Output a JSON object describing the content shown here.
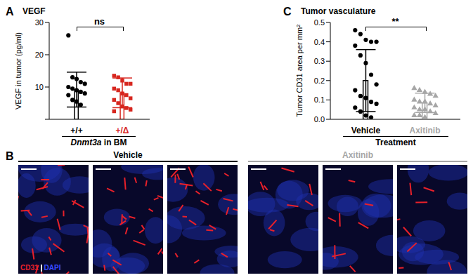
{
  "chart_data": [
    {
      "panel": "A",
      "type": "bar",
      "title": "VEGF",
      "y_label": "VEGF in tumor (pg/ml)",
      "x_label": "Dnmt3a in BM",
      "annotation": "ns",
      "categories": [
        "+/+",
        "+/Δ"
      ],
      "values": [
        9.2,
        8.2
      ],
      "error": [
        5.4,
        4.6
      ],
      "colors": [
        "#000000",
        "#d7261e"
      ],
      "points": [
        {
          "marker": "circle",
          "values": [
            26,
            13,
            12.5,
            11.5,
            11,
            10,
            9.5,
            9,
            8.5,
            8,
            7.5,
            6,
            5.5,
            4.5
          ]
        },
        {
          "marker": "square",
          "values": [
            13.5,
            13,
            12,
            11,
            11,
            9.5,
            9,
            8,
            7.5,
            6.5,
            6,
            5,
            4,
            3.5,
            3,
            2.5
          ]
        }
      ],
      "ylim": [
        0,
        30
      ],
      "yticks": [
        0,
        10,
        20,
        30
      ]
    },
    {
      "panel": "C",
      "type": "bar",
      "title": "Tumor vasculature",
      "y_label": "Tumor CD31 area per mm²",
      "x_label": "Treatment",
      "annotation": "**",
      "categories": [
        "Vehicle",
        "Axitinib"
      ],
      "values": [
        0.2,
        0.085
      ],
      "error": [
        0.16,
        0.05
      ],
      "colors": [
        "#000000",
        "#a6a6a6"
      ],
      "points": [
        {
          "marker": "circle",
          "values": [
            0.46,
            0.44,
            0.41,
            0.4,
            0.4,
            0.38,
            0.33,
            0.29,
            0.23,
            0.18,
            0.15,
            0.12,
            0.11,
            0.09,
            0.08,
            0.06,
            0.04,
            0.02,
            0.01
          ]
        },
        {
          "marker": "triangle",
          "values": [
            0.16,
            0.15,
            0.14,
            0.13,
            0.12,
            0.1,
            0.09,
            0.09,
            0.08,
            0.07,
            0.06,
            0.05,
            0.05,
            0.04,
            0.03,
            0.02,
            0.02,
            0.01
          ]
        }
      ],
      "ylim": [
        0,
        0.5
      ],
      "yticks": [
        {
          "value": 0,
          "label": "0.0"
        },
        {
          "value": 0.1,
          "label": "0.1"
        },
        {
          "value": 0.2,
          "label": "0.2"
        },
        {
          "value": 0.3,
          "label": "0.3"
        },
        {
          "value": 0.4,
          "label": "0.4"
        },
        {
          "value": 0.5,
          "label": "0.5"
        }
      ]
    }
  ],
  "panel_B": {
    "panel": "B",
    "groups": [
      {
        "name": "Vehicle",
        "color": "#000000"
      },
      {
        "name": "Axitinib",
        "color": "#a6a6a6"
      }
    ],
    "stains": [
      {
        "text": "CD31",
        "color": "#e8202a"
      },
      {
        "text": "DAPI",
        "color": "#3a4cff"
      }
    ]
  }
}
